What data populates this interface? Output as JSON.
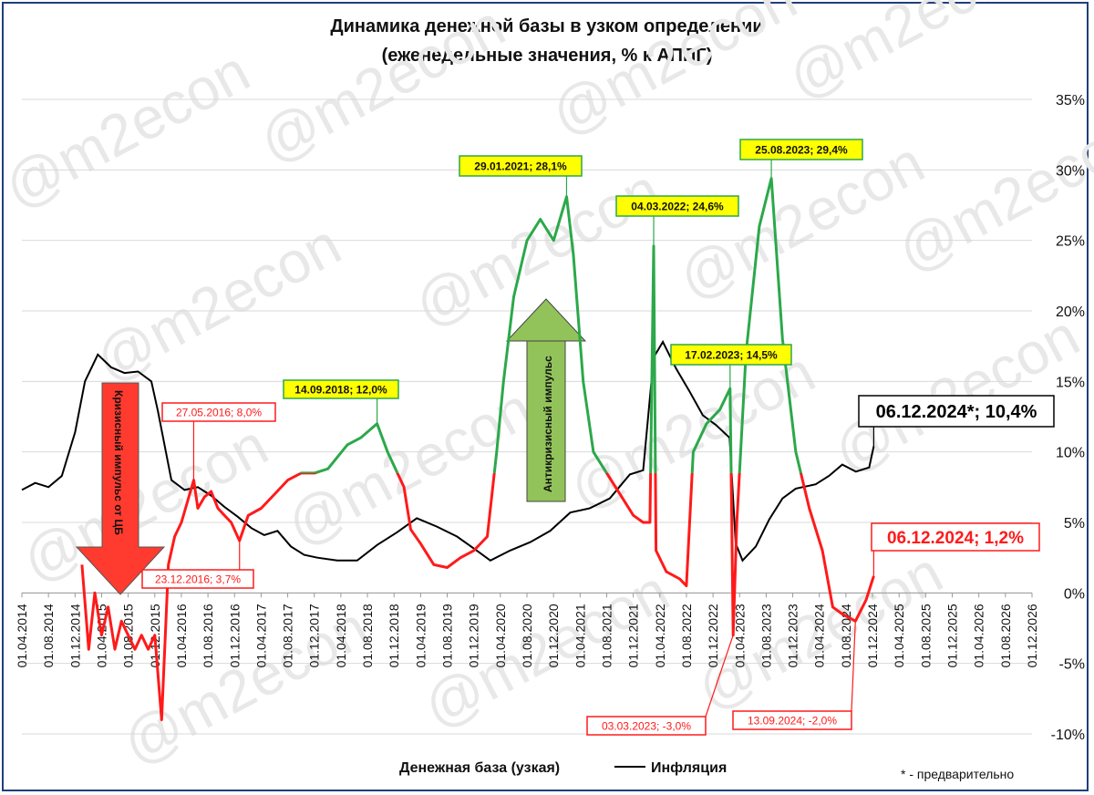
{
  "chart_data": {
    "type": "line",
    "title": "Динамика денежной базы в узком определении",
    "subtitle": "(еженедельные значения, % к АППГ)",
    "ylim": [
      -10,
      35
    ],
    "y_ticks": [
      "-10%",
      "-5%",
      "0%",
      "5%",
      "10%",
      "15%",
      "20%",
      "25%",
      "30%",
      "35%"
    ],
    "x_ticks": [
      "01.04.2014",
      "01.08.2014",
      "01.12.2014",
      "01.04.2015",
      "01.08.2015",
      "01.12.2015",
      "01.04.2016",
      "01.08.2016",
      "01.12.2016",
      "01.04.2017",
      "01.08.2017",
      "01.12.2017",
      "01.04.2018",
      "01.08.2018",
      "01.12.2018",
      "01.04.2019",
      "01.08.2019",
      "01.12.2019",
      "01.04.2020",
      "01.08.2020",
      "01.12.2020",
      "01.04.2021",
      "01.08.2021",
      "01.12.2021",
      "01.04.2022",
      "01.08.2022",
      "01.12.2022",
      "01.04.2023",
      "01.08.2023",
      "01.12.2023",
      "01.04.2024",
      "01.08.2024",
      "01.12.2024",
      "01.04.2025",
      "01.08.2025",
      "01.12.2025",
      "01.04.2026",
      "01.08.2026",
      "01.12.2026"
    ],
    "grid": true,
    "legend_position": "bottom",
    "series": [
      {
        "name": "Денежная база (узкая)",
        "color_high": "#2ca84a",
        "color_low": "#ff1a1a",
        "points": [
          [
            "2015-01-01",
            2
          ],
          [
            "2015-02-01",
            -4
          ],
          [
            "2015-03-01",
            0
          ],
          [
            "2015-04-01",
            -3
          ],
          [
            "2015-05-01",
            -1
          ],
          [
            "2015-06-01",
            -4
          ],
          [
            "2015-07-01",
            -2
          ],
          [
            "2015-08-01",
            -3
          ],
          [
            "2015-09-01",
            -4
          ],
          [
            "2015-10-01",
            -3
          ],
          [
            "2015-11-01",
            -4
          ],
          [
            "2015-12-01",
            -3
          ],
          [
            "2016-01-01",
            -9
          ],
          [
            "2016-02-01",
            2
          ],
          [
            "2016-03-01",
            4
          ],
          [
            "2016-04-01",
            5
          ],
          [
            "2016-05-27",
            8
          ],
          [
            "2016-06-15",
            6
          ],
          [
            "2016-07-15",
            6.8
          ],
          [
            "2016-08-15",
            7.2
          ],
          [
            "2016-09-15",
            6
          ],
          [
            "2016-10-15",
            5.5
          ],
          [
            "2016-11-15",
            5
          ],
          [
            "2016-12-23",
            3.7
          ],
          [
            "2017-02-01",
            5.5
          ],
          [
            "2017-04-01",
            6
          ],
          [
            "2017-06-01",
            7
          ],
          [
            "2017-08-01",
            8
          ],
          [
            "2017-10-01",
            8.5
          ],
          [
            "2017-12-01",
            8.5
          ],
          [
            "2018-02-01",
            8.8
          ],
          [
            "2018-05-01",
            10.5
          ],
          [
            "2018-07-01",
            11
          ],
          [
            "2018-09-14",
            12
          ],
          [
            "2018-11-01",
            10
          ],
          [
            "2018-12-01",
            9
          ],
          [
            "2019-01-15",
            7.5
          ],
          [
            "2019-02-15",
            4.5
          ],
          [
            "2019-04-01",
            3.5
          ],
          [
            "2019-06-01",
            2
          ],
          [
            "2019-08-01",
            1.8
          ],
          [
            "2019-10-01",
            2.5
          ],
          [
            "2019-12-01",
            3
          ],
          [
            "2020-02-01",
            4
          ],
          [
            "2020-03-15",
            10
          ],
          [
            "2020-04-15",
            15
          ],
          [
            "2020-06-01",
            21
          ],
          [
            "2020-08-01",
            25
          ],
          [
            "2020-10-01",
            26.5
          ],
          [
            "2020-12-01",
            25
          ],
          [
            "2021-01-29",
            28.1
          ],
          [
            "2021-03-01",
            24
          ],
          [
            "2021-04-15",
            15
          ],
          [
            "2021-06-01",
            10
          ],
          [
            "2021-08-01",
            8.5
          ],
          [
            "2021-10-01",
            7
          ],
          [
            "2021-12-01",
            5.5
          ],
          [
            "2022-01-15",
            5
          ],
          [
            "2022-02-15",
            5
          ],
          [
            "2022-03-04",
            24.6
          ],
          [
            "2022-03-15",
            3
          ],
          [
            "2022-05-01",
            1.5
          ],
          [
            "2022-07-01",
            1
          ],
          [
            "2022-08-01",
            0.5
          ],
          [
            "2022-09-01",
            10
          ],
          [
            "2022-11-01",
            12
          ],
          [
            "2023-01-01",
            13
          ],
          [
            "2023-02-17",
            14.5
          ],
          [
            "2023-02-25",
            5
          ],
          [
            "2023-03-03",
            -3
          ],
          [
            "2023-03-20",
            5
          ],
          [
            "2023-05-01",
            17
          ],
          [
            "2023-07-01",
            26
          ],
          [
            "2023-08-25",
            29.4
          ],
          [
            "2023-10-15",
            18
          ],
          [
            "2023-12-15",
            10
          ],
          [
            "2024-02-15",
            6
          ],
          [
            "2024-04-15",
            3
          ],
          [
            "2024-06-01",
            -1
          ],
          [
            "2024-07-15",
            -1.5
          ],
          [
            "2024-09-13",
            -2
          ],
          [
            "2024-11-01",
            -0.5
          ],
          [
            "2024-12-06",
            1.2
          ]
        ]
      },
      {
        "name": "Инфляция",
        "color": "#000000",
        "points": [
          [
            "2014-04-01",
            7.3
          ],
          [
            "2014-06-01",
            7.8
          ],
          [
            "2014-08-01",
            7.5
          ],
          [
            "2014-10-01",
            8.3
          ],
          [
            "2014-12-01",
            11.4
          ],
          [
            "2015-01-15",
            15
          ],
          [
            "2015-03-15",
            16.9
          ],
          [
            "2015-05-15",
            16
          ],
          [
            "2015-07-15",
            15.6
          ],
          [
            "2015-09-15",
            15.7
          ],
          [
            "2015-11-15",
            15
          ],
          [
            "2015-12-15",
            12.9
          ],
          [
            "2016-02-15",
            8
          ],
          [
            "2016-04-15",
            7.3
          ],
          [
            "2016-06-15",
            7.5
          ],
          [
            "2016-08-15",
            6.9
          ],
          [
            "2016-10-15",
            6.1
          ],
          [
            "2016-12-15",
            5.4
          ],
          [
            "2017-02-15",
            4.6
          ],
          [
            "2017-04-15",
            4.1
          ],
          [
            "2017-06-15",
            4.4
          ],
          [
            "2017-08-15",
            3.3
          ],
          [
            "2017-10-15",
            2.7
          ],
          [
            "2017-12-15",
            2.5
          ],
          [
            "2018-03-15",
            2.3
          ],
          [
            "2018-06-15",
            2.3
          ],
          [
            "2018-09-15",
            3.4
          ],
          [
            "2018-12-15",
            4.3
          ],
          [
            "2019-03-15",
            5.3
          ],
          [
            "2019-06-15",
            4.7
          ],
          [
            "2019-09-15",
            4
          ],
          [
            "2019-12-15",
            3
          ],
          [
            "2020-02-15",
            2.3
          ],
          [
            "2020-05-15",
            3
          ],
          [
            "2020-08-15",
            3.6
          ],
          [
            "2020-11-15",
            4.4
          ],
          [
            "2021-02-15",
            5.7
          ],
          [
            "2021-05-15",
            6
          ],
          [
            "2021-08-15",
            6.7
          ],
          [
            "2021-11-15",
            8.4
          ],
          [
            "2022-01-15",
            8.7
          ],
          [
            "2022-03-04",
            16.7
          ],
          [
            "2022-04-15",
            17.8
          ],
          [
            "2022-06-15",
            15.9
          ],
          [
            "2022-08-15",
            14.3
          ],
          [
            "2022-10-15",
            12.6
          ],
          [
            "2022-12-15",
            11.9
          ],
          [
            "2023-02-15",
            11
          ],
          [
            "2023-03-15",
            3.5
          ],
          [
            "2023-04-15",
            2.3
          ],
          [
            "2023-06-15",
            3.3
          ],
          [
            "2023-08-15",
            5.2
          ],
          [
            "2023-10-15",
            6.7
          ],
          [
            "2023-12-15",
            7.4
          ],
          [
            "2024-03-15",
            7.7
          ],
          [
            "2024-05-15",
            8.3
          ],
          [
            "2024-07-15",
            9.1
          ],
          [
            "2024-09-15",
            8.6
          ],
          [
            "2024-11-15",
            8.9
          ],
          [
            "2024-12-06",
            10.4
          ]
        ]
      }
    ],
    "callouts": [
      {
        "text": "27.05.2016; 8,0%",
        "style": "red",
        "date": "2016-05-27",
        "value": 8.0
      },
      {
        "text": "23.12.2016; 3,7%",
        "style": "red",
        "date": "2016-12-23",
        "value": 3.7
      },
      {
        "text": "14.09.2018; 12,0%",
        "style": "yellow",
        "date": "2018-09-14",
        "value": 12.0
      },
      {
        "text": "29.01.2021; 28,1%",
        "style": "yellow",
        "date": "2021-01-29",
        "value": 28.1
      },
      {
        "text": "04.03.2022; 24,6%",
        "style": "yellow",
        "date": "2022-03-04",
        "value": 24.6
      },
      {
        "text": "17.02.2023; 14,5%",
        "style": "yellow",
        "date": "2023-02-17",
        "value": 14.5
      },
      {
        "text": "25.08.2023; 29,4%",
        "style": "yellow",
        "date": "2023-08-25",
        "value": 29.4
      },
      {
        "text": "03.03.2023; -3,0%",
        "style": "red",
        "date": "2023-03-03",
        "value": -3.0
      },
      {
        "text": "13.09.2024; -2,0%",
        "style": "red",
        "date": "2024-09-13",
        "value": -2.0
      },
      {
        "text": "06.12.2024*; 10,4%",
        "style": "black-big",
        "date": "2024-12-06",
        "value": 10.4
      },
      {
        "text": "06.12.2024; 1,2%",
        "style": "red-big",
        "date": "2024-12-06",
        "value": 1.2
      }
    ],
    "arrows": [
      {
        "text": "Кризисный импульс от ЦБ",
        "direction": "down",
        "color": "#ff3b30"
      },
      {
        "text": "Антикризисный импульс",
        "direction": "up",
        "color": "#92c35a"
      }
    ]
  },
  "legend": {
    "money_base": "Денежная база (узкая)",
    "inflation": "Инфляция"
  },
  "footnote": "* - предварительно",
  "watermark": "@m2econ"
}
